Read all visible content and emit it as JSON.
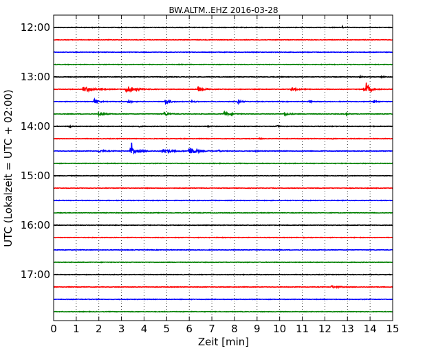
{
  "chart_data": {
    "type": "line",
    "title": "BW.ALTM..EHZ 2016-03-28",
    "xlabel": "Zeit  [min]",
    "ylabel": "UTC (Lokalzeit = UTC + 02:00)",
    "xlim": [
      0,
      15
    ],
    "x_ticks": [
      "0",
      "1",
      "2",
      "3",
      "4",
      "5",
      "6",
      "7",
      "8",
      "9",
      "10",
      "11",
      "12",
      "13",
      "14",
      "15"
    ],
    "y_tick_labels": [
      "12:00",
      "13:00",
      "14:00",
      "15:00",
      "16:00",
      "17:00"
    ],
    "y_tick_rows": [
      0,
      4,
      8,
      12,
      16,
      20
    ],
    "grid": "vertical dotted",
    "colors": [
      "#000000",
      "#ff0000",
      "#0000ff",
      "#008000"
    ],
    "traces": [
      {
        "row": 0,
        "color_index": 0,
        "events": [
          {
            "t": 12.8,
            "amp": 0.6,
            "dur": 0.05
          }
        ]
      },
      {
        "row": 1,
        "color_index": 1,
        "events": []
      },
      {
        "row": 2,
        "color_index": 2,
        "events": []
      },
      {
        "row": 3,
        "color_index": 3,
        "events": []
      },
      {
        "row": 4,
        "color_index": 0,
        "events": [
          {
            "t": 13.55,
            "amp": 0.3,
            "dur": 0.2
          },
          {
            "t": 14.5,
            "amp": 0.25,
            "dur": 0.3
          }
        ]
      },
      {
        "row": 5,
        "color_index": 1,
        "events": [
          {
            "t": 1.3,
            "amp": 1.1,
            "dur": 0.9
          },
          {
            "t": 3.2,
            "amp": 1.8,
            "dur": 0.7
          },
          {
            "t": 6.4,
            "amp": 1.0,
            "dur": 0.5
          },
          {
            "t": 10.5,
            "amp": 0.8,
            "dur": 0.5
          },
          {
            "t": 13.85,
            "amp": 2.5,
            "dur": 0.25
          },
          {
            "t": 13.7,
            "amp": 0.7,
            "dur": 0.5
          }
        ]
      },
      {
        "row": 6,
        "color_index": 2,
        "events": [
          {
            "t": 1.8,
            "amp": 1.1,
            "dur": 0.3
          },
          {
            "t": 3.3,
            "amp": 0.7,
            "dur": 0.35
          },
          {
            "t": 4.95,
            "amp": 0.9,
            "dur": 0.4
          },
          {
            "t": 6.1,
            "amp": 0.5,
            "dur": 0.3
          },
          {
            "t": 8.15,
            "amp": 0.8,
            "dur": 0.3
          },
          {
            "t": 11.3,
            "amp": 0.5,
            "dur": 0.2
          },
          {
            "t": 14.15,
            "amp": 0.6,
            "dur": 0.3
          }
        ]
      },
      {
        "row": 7,
        "color_index": 3,
        "events": [
          {
            "t": 2.0,
            "amp": 0.9,
            "dur": 0.4
          },
          {
            "t": 4.9,
            "amp": 0.9,
            "dur": 0.4
          },
          {
            "t": 7.55,
            "amp": 1.0,
            "dur": 0.5
          },
          {
            "t": 10.2,
            "amp": 0.8,
            "dur": 0.4
          },
          {
            "t": 12.95,
            "amp": 0.5,
            "dur": 0.15
          }
        ]
      },
      {
        "row": 8,
        "color_index": 0,
        "events": [
          {
            "t": 0.7,
            "amp": 0.6,
            "dur": 0.15
          },
          {
            "t": 3.75,
            "amp": 0.3,
            "dur": 0.15
          },
          {
            "t": 6.8,
            "amp": 0.3,
            "dur": 0.15
          },
          {
            "t": 9.9,
            "amp": 0.35,
            "dur": 0.15
          }
        ]
      },
      {
        "row": 9,
        "color_index": 1,
        "events": [
          {
            "t": 9.1,
            "amp": 0.4,
            "dur": 0.15
          },
          {
            "t": 12.3,
            "amp": 0.2,
            "dur": 0.15
          }
        ]
      },
      {
        "row": 10,
        "color_index": 2,
        "events": [
          {
            "t": 2.0,
            "amp": 0.6,
            "dur": 0.5
          },
          {
            "t": 3.4,
            "amp": 1.2,
            "dur": 0.8
          },
          {
            "t": 3.45,
            "amp": 6.0,
            "dur": 0.03
          },
          {
            "t": 4.8,
            "amp": 0.9,
            "dur": 0.8
          },
          {
            "t": 6.0,
            "amp": 1.8,
            "dur": 0.6
          },
          {
            "t": 7.3,
            "amp": 0.3,
            "dur": 0.2
          },
          {
            "t": 8.9,
            "amp": 0.3,
            "dur": 0.2
          }
        ]
      },
      {
        "row": 11,
        "color_index": 3,
        "events": []
      },
      {
        "row": 12,
        "color_index": 0,
        "events": []
      },
      {
        "row": 13,
        "color_index": 1,
        "events": []
      },
      {
        "row": 14,
        "color_index": 2,
        "events": []
      },
      {
        "row": 15,
        "color_index": 3,
        "events": []
      },
      {
        "row": 16,
        "color_index": 0,
        "events": []
      },
      {
        "row": 17,
        "color_index": 1,
        "events": []
      },
      {
        "row": 18,
        "color_index": 2,
        "events": []
      },
      {
        "row": 19,
        "color_index": 3,
        "events": []
      },
      {
        "row": 20,
        "color_index": 0,
        "events": []
      },
      {
        "row": 21,
        "color_index": 1,
        "events": [
          {
            "t": 12.3,
            "amp": 0.5,
            "dur": 0.7
          }
        ]
      },
      {
        "row": 22,
        "color_index": 2,
        "events": []
      },
      {
        "row": 23,
        "color_index": 3,
        "events": []
      }
    ]
  }
}
